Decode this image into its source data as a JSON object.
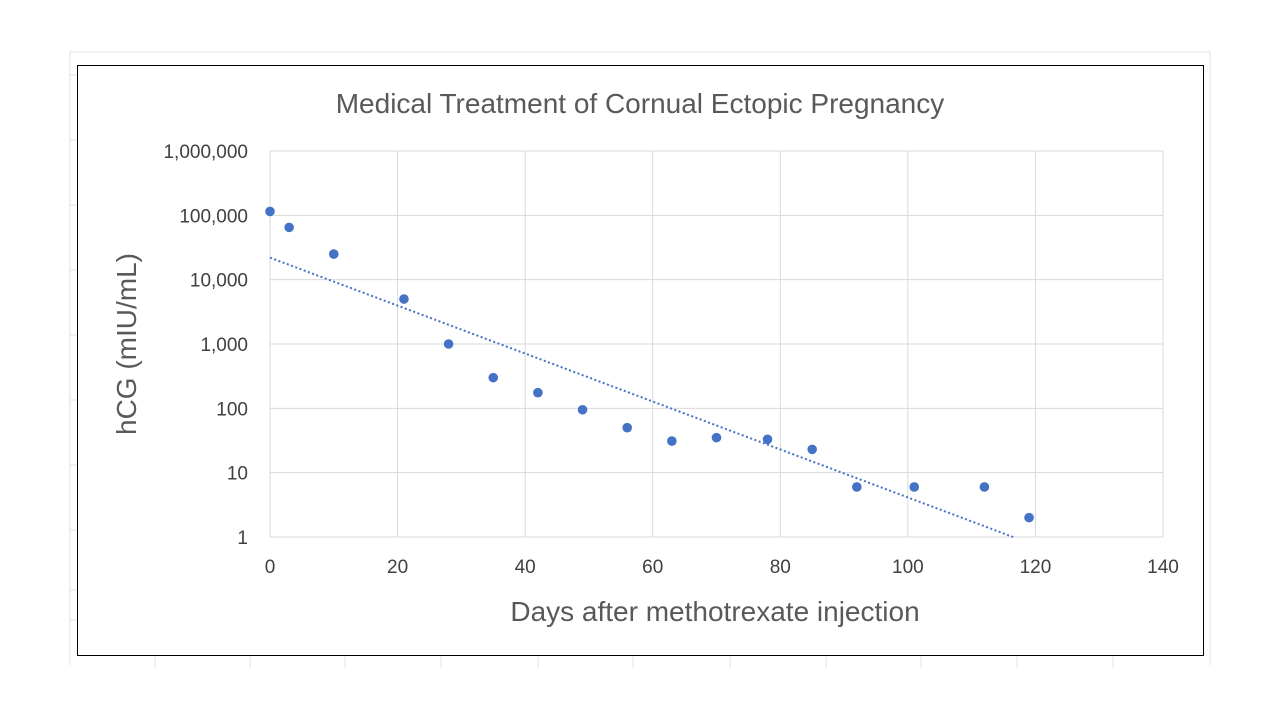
{
  "chart_data": {
    "type": "scatter",
    "title": "Medical Treatment of Cornual Ectopic Pregnancy",
    "xlabel": "Days after methotrexate injection",
    "ylabel": "hCG (mIU/mL)",
    "xlim": [
      0,
      140
    ],
    "ylim": [
      1,
      1000000
    ],
    "y_scale": "log",
    "grid": true,
    "legend": "none",
    "x_ticks": [
      0,
      20,
      40,
      60,
      80,
      100,
      120,
      140
    ],
    "x_tick_labels": [
      "0",
      "20",
      "40",
      "60",
      "80",
      "100",
      "120",
      "140"
    ],
    "y_ticks": [
      1,
      10,
      100,
      1000,
      10000,
      100000,
      1000000
    ],
    "y_tick_labels": [
      "1",
      "10",
      "100",
      "1,000",
      "10,000",
      "100,000",
      "1,000,000"
    ],
    "series": [
      {
        "color": "#4472c4",
        "x": [
          0,
          3,
          10,
          21,
          28,
          35,
          42,
          49,
          56,
          63,
          70,
          78,
          85,
          92,
          101,
          112,
          119
        ],
        "y": [
          115000,
          65000,
          25000,
          5000,
          1000,
          300,
          175,
          95,
          50,
          31,
          35,
          33,
          23,
          6,
          6,
          6,
          2
        ]
      }
    ],
    "trendline": {
      "type": "exponential",
      "style": "dotted",
      "color": "#4472c4",
      "x_start": 0,
      "y_start": 22000,
      "x_end": 116.5,
      "y_end": 1
    }
  }
}
